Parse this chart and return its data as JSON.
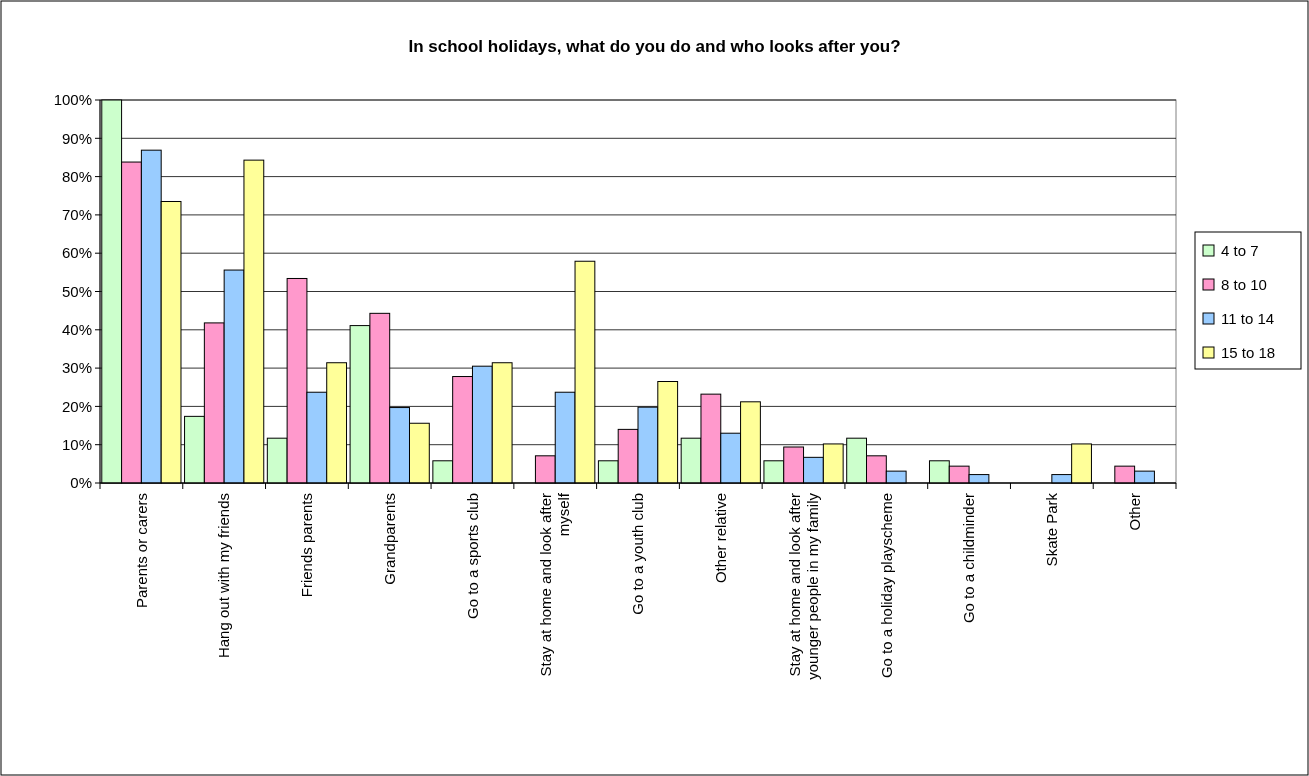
{
  "chart_data": {
    "type": "bar",
    "title": "In school holidays, what do you do and who looks after you?",
    "categories": [
      "Parents or carers",
      "Hang out with my friends",
      "Friends parents",
      "Grandparents",
      "Go to a sports club",
      "Stay at home and look after myself",
      "Go to a youth club",
      "Other relative",
      "Stay at home and look after younger people in my family",
      "Go to a holiday playscheme",
      "Go to a childminder",
      "Skate Park",
      "Other"
    ],
    "series": [
      {
        "name": "4 to 7",
        "color": "#ccffcc",
        "values": [
          100,
          17.4,
          11.7,
          41.1,
          5.8,
          0,
          5.8,
          11.7,
          5.8,
          11.7,
          5.8,
          0,
          0
        ]
      },
      {
        "name": "8 to 10",
        "color": "#ff99cc",
        "values": [
          83.8,
          41.8,
          53.4,
          44.3,
          27.8,
          7.1,
          14.0,
          23.2,
          9.4,
          7.1,
          4.4,
          0,
          4.4
        ]
      },
      {
        "name": "11 to 14",
        "color": "#99ccff",
        "values": [
          86.9,
          55.6,
          23.7,
          19.7,
          30.5,
          23.7,
          19.8,
          13.0,
          6.7,
          3.1,
          2.2,
          2.2,
          3.1
        ]
      },
      {
        "name": "15 to 18",
        "color": "#ffff99",
        "values": [
          73.5,
          84.3,
          31.4,
          15.6,
          31.4,
          57.9,
          26.5,
          21.2,
          10.2,
          0,
          0,
          10.2,
          0
        ]
      }
    ],
    "ylim": [
      0,
      100
    ],
    "yticks": [
      {
        "value": 0,
        "label": "0%"
      },
      {
        "value": 10,
        "label": "10%"
      },
      {
        "value": 20,
        "label": "20%"
      },
      {
        "value": 30,
        "label": "30%"
      },
      {
        "value": 40,
        "label": "40%"
      },
      {
        "value": 50,
        "label": "50%"
      },
      {
        "value": 60,
        "label": "60%"
      },
      {
        "value": 70,
        "label": "70%"
      },
      {
        "value": 80,
        "label": "80%"
      },
      {
        "value": 90,
        "label": "90%"
      },
      {
        "value": 100,
        "label": "100%"
      }
    ],
    "grid": "y",
    "legend": "right"
  }
}
